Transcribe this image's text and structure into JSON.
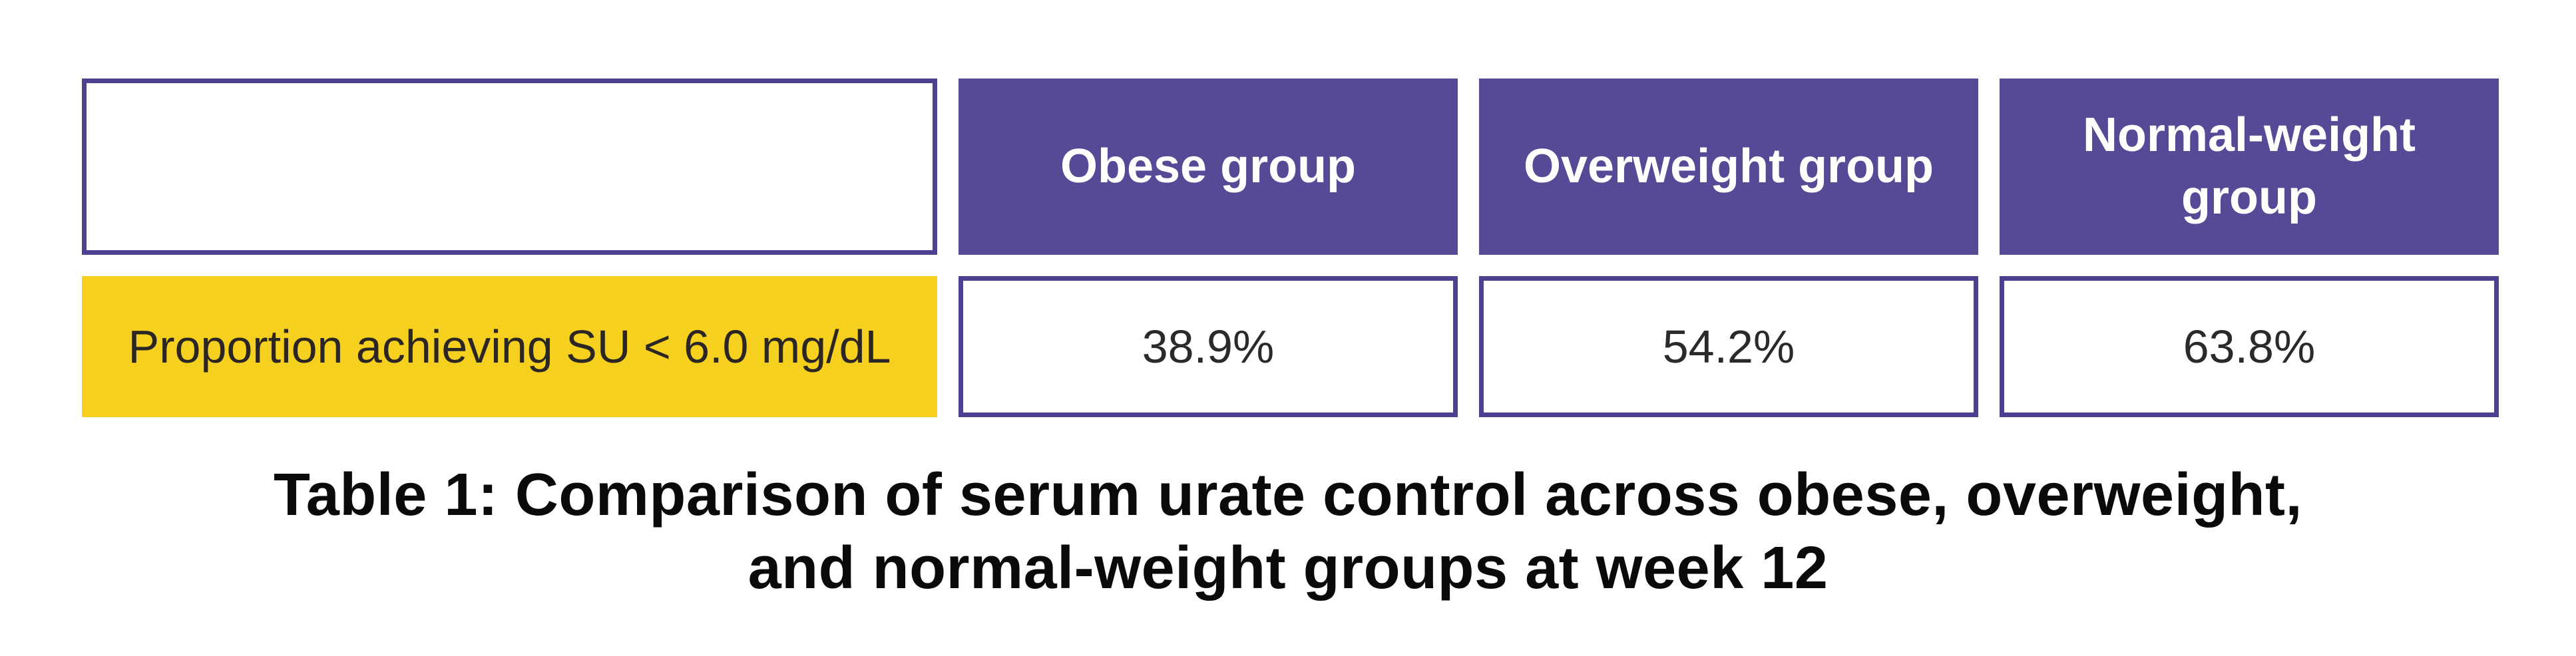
{
  "table": {
    "corner_label": "",
    "columns": [
      "Obese group",
      "Overweight group",
      "Normal-weight group"
    ],
    "rows": [
      {
        "label": "Proportion achieving SU < 6.0 mg/dL",
        "values": [
          "38.9%",
          "54.2%",
          "63.8%"
        ]
      }
    ]
  },
  "caption": {
    "line1": "Table 1: Comparison of serum urate control across obese, overweight,",
    "line2": "and normal-weight groups at week 12"
  },
  "colors": {
    "header_fill": "#564996",
    "cell_border": "#4C4190",
    "row_label_fill": "#F5D01E",
    "header_text": "#FFFFFF",
    "body_text": "#2B2A28",
    "caption_text": "#0A0A0A",
    "background": "#FFFFFF"
  },
  "chart_data": {
    "type": "table",
    "title": "Table 1: Comparison of serum urate control across obese, overweight, and normal-weight groups at week 12",
    "columns": [
      "",
      "Obese group",
      "Overweight group",
      "Normal-weight group"
    ],
    "rows": [
      [
        "Proportion achieving SU < 6.0 mg/dL",
        "38.9%",
        "54.2%",
        "63.8%"
      ]
    ],
    "series": [
      {
        "name": "Proportion achieving SU < 6.0 mg/dL (%)",
        "categories": [
          "Obese group",
          "Overweight group",
          "Normal-weight group"
        ],
        "values": [
          38.9,
          54.2,
          63.8
        ]
      }
    ],
    "legend_position": "none",
    "grid": false
  }
}
